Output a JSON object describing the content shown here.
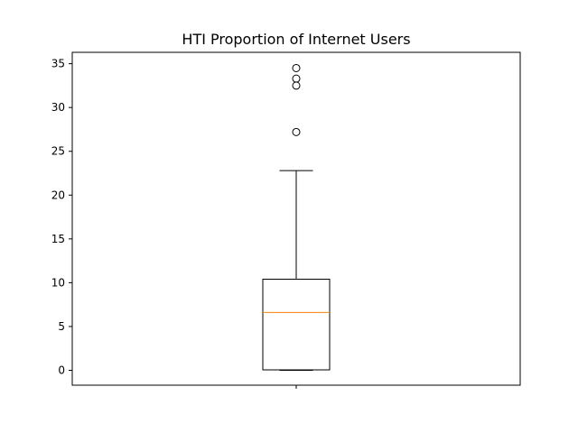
{
  "chart_data": {
    "type": "box",
    "title": "HTI Proportion of Internet Users",
    "xlabel": "",
    "ylabel": "",
    "ylim": [
      -1.7,
      36.3
    ],
    "yticks": [
      0,
      5,
      10,
      15,
      20,
      25,
      30,
      35
    ],
    "grid": false,
    "box": {
      "whisker_low": 0.0,
      "q1": 0.05,
      "median": 6.6,
      "q3": 10.4,
      "whisker_high": 22.8,
      "outliers": [
        27.2,
        32.5,
        33.3,
        34.5
      ]
    },
    "colors": {
      "median": "#ff7f0e",
      "box": "#000000"
    }
  }
}
